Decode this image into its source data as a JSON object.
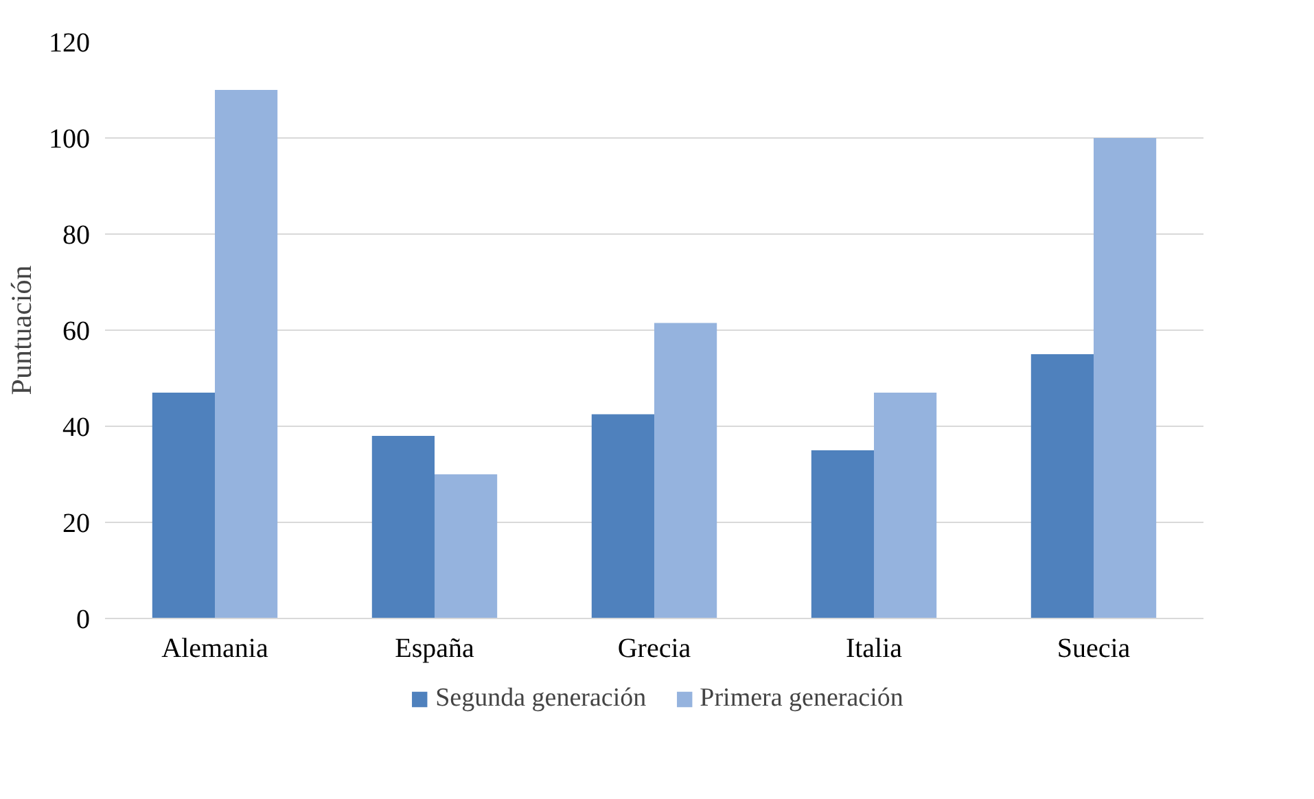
{
  "chart_data": {
    "type": "bar",
    "ylabel": "Puntuación",
    "categories": [
      "Alemania",
      "España",
      "Grecia",
      "Italia",
      "Suecia"
    ],
    "series": [
      {
        "name": "Segunda generación",
        "color": "#4f81bd",
        "values": [
          47,
          38,
          42.5,
          35,
          55
        ]
      },
      {
        "name": "Primera generación",
        "color": "#95b3de",
        "values": [
          110,
          30,
          61.5,
          47,
          100
        ]
      }
    ],
    "ylim": [
      0,
      120
    ],
    "yticks": [
      0,
      20,
      40,
      60,
      80,
      100,
      120
    ],
    "grid": "y",
    "legend": "bottom"
  }
}
